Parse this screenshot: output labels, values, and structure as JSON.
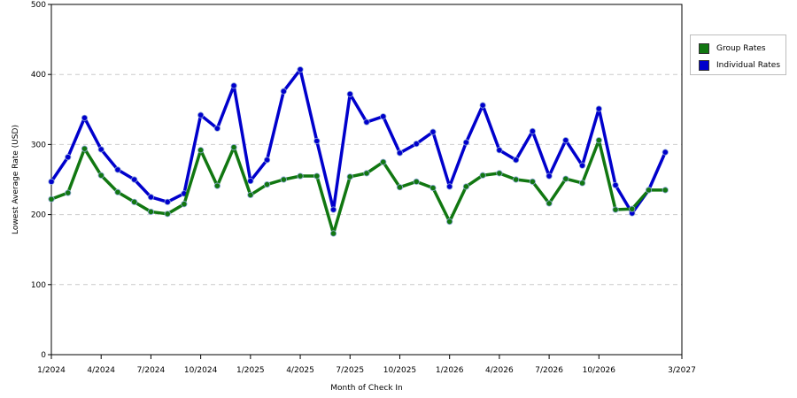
{
  "chart_data": {
    "type": "line",
    "xlabel": "Month of Check In",
    "ylabel": "Lowest Average Rate (USD)",
    "ylim": [
      0,
      500
    ],
    "yticks": [
      0,
      100,
      200,
      300,
      400,
      500
    ],
    "xlim": [
      "2024-01",
      "2027-03"
    ],
    "xticks": [
      "1/2024",
      "4/2024",
      "7/2024",
      "10/2024",
      "1/2025",
      "4/2025",
      "7/2025",
      "10/2025",
      "1/2026",
      "4/2026",
      "7/2026",
      "10/2026",
      "3/2027"
    ],
    "grid": "horizontal dashed",
    "legend_position": "right",
    "x": [
      "2024-01",
      "2024-02",
      "2024-03",
      "2024-04",
      "2024-05",
      "2024-06",
      "2024-07",
      "2024-08",
      "2024-09",
      "2024-10",
      "2024-11",
      "2024-12",
      "2025-01",
      "2025-02",
      "2025-03",
      "2025-04",
      "2025-05",
      "2025-06",
      "2025-07",
      "2025-08",
      "2025-09",
      "2025-10",
      "2025-11",
      "2025-12",
      "2026-01",
      "2026-02",
      "2026-03",
      "2026-04",
      "2026-05",
      "2026-06",
      "2026-07",
      "2026-08",
      "2026-09",
      "2026-10",
      "2026-11",
      "2026-12",
      "2027-01",
      "2027-02",
      "2027-03"
    ],
    "series": [
      {
        "name": "Individual Rates",
        "color": "#0000cc",
        "values": [
          247,
          282,
          338,
          293,
          264,
          250,
          225,
          218,
          230,
          342,
          323,
          384,
          248,
          278,
          376,
          407,
          305,
          207,
          372,
          332,
          340,
          288,
          301,
          318,
          240,
          303,
          356,
          292,
          278,
          319,
          255,
          306,
          270,
          351,
          242,
          202,
          235,
          289,
          null
        ]
      },
      {
        "name": "Group Rates",
        "color": "#117711",
        "values": [
          222,
          231,
          294,
          256,
          232,
          218,
          204,
          201,
          215,
          292,
          241,
          296,
          228,
          243,
          250,
          255,
          255,
          173,
          254,
          259,
          275,
          239,
          247,
          238,
          190,
          240,
          256,
          259,
          250,
          247,
          216,
          251,
          245,
          306,
          207,
          208,
          235,
          235,
          null
        ]
      }
    ]
  },
  "legend": {
    "items": [
      {
        "label": "Group Rates",
        "color": "#117711"
      },
      {
        "label": "Individual Rates",
        "color": "#0000cc"
      }
    ]
  }
}
